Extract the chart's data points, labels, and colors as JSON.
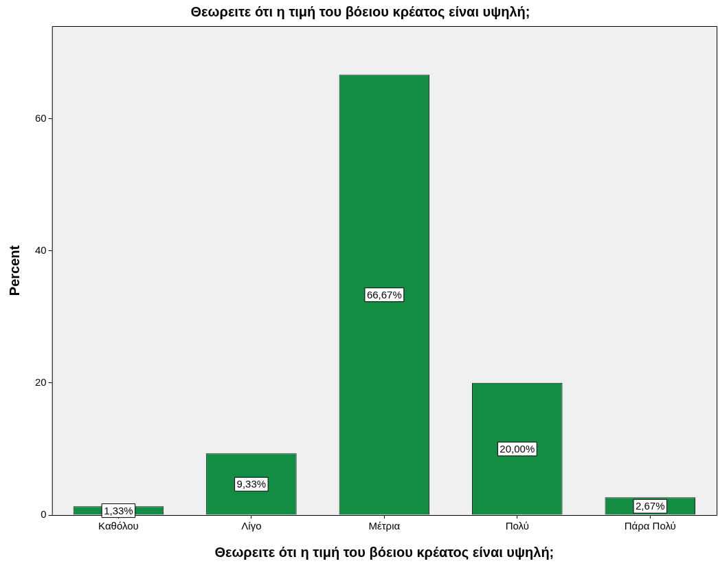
{
  "chart_data": {
    "type": "bar",
    "title": "Θεωρειτε ότι η τιμή του βόειου κρέατος είναι υψηλή;",
    "xlabel": "Θεωρειτε ότι η τιμή του βόειου κρέατος είναι υψηλή;",
    "ylabel": "Percent",
    "categories": [
      "Καθόλου",
      "Λίγο",
      "Μέτρια",
      "Πολύ",
      "Πάρα Πολύ"
    ],
    "values": [
      1.33,
      9.33,
      66.67,
      20,
      2.67
    ],
    "value_labels": [
      "1,33%",
      "9,33%",
      "66,67%",
      "20,00%",
      "2,67%"
    ],
    "color": "#138d44",
    "ylim": [
      0,
      74
    ],
    "yticks": [
      0,
      20,
      40,
      60
    ],
    "legend": false
  }
}
